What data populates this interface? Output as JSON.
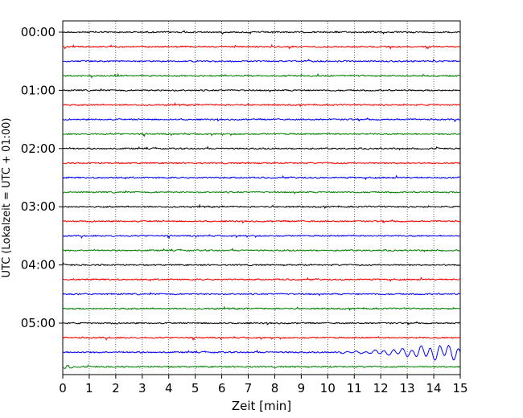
{
  "chart_data": {
    "type": "line",
    "xlabel": "Zeit  [min]",
    "ylabel": "UTC (Lokalzeit = UTC + 01:00)",
    "xlim": [
      0,
      15
    ],
    "x_ticks": [
      "0",
      "1",
      "2",
      "3",
      "4",
      "5",
      "6",
      "7",
      "8",
      "9",
      "10",
      "11",
      "12",
      "13",
      "14",
      "15"
    ],
    "y_ticks": [
      "00:00",
      "01:00",
      "02:00",
      "03:00",
      "04:00",
      "05:00"
    ],
    "grid": "vertical dotted",
    "trace_interval_minutes": 15,
    "trace_colors": [
      "#000000",
      "#ff0000",
      "#0000ff",
      "#008000"
    ],
    "trace_start_times": [
      "00:00",
      "00:15",
      "00:30",
      "00:45",
      "01:00",
      "01:15",
      "01:30",
      "01:45",
      "02:00",
      "02:15",
      "02:30",
      "02:45",
      "03:00",
      "03:15",
      "03:30",
      "03:45",
      "04:00",
      "04:15",
      "04:30",
      "04:45",
      "05:00",
      "05:15",
      "05:30",
      "05:45"
    ],
    "event": {
      "trace": "05:30",
      "x_start": 10.5,
      "x_peak": 14.0,
      "peak_amplitude": "high"
    }
  }
}
